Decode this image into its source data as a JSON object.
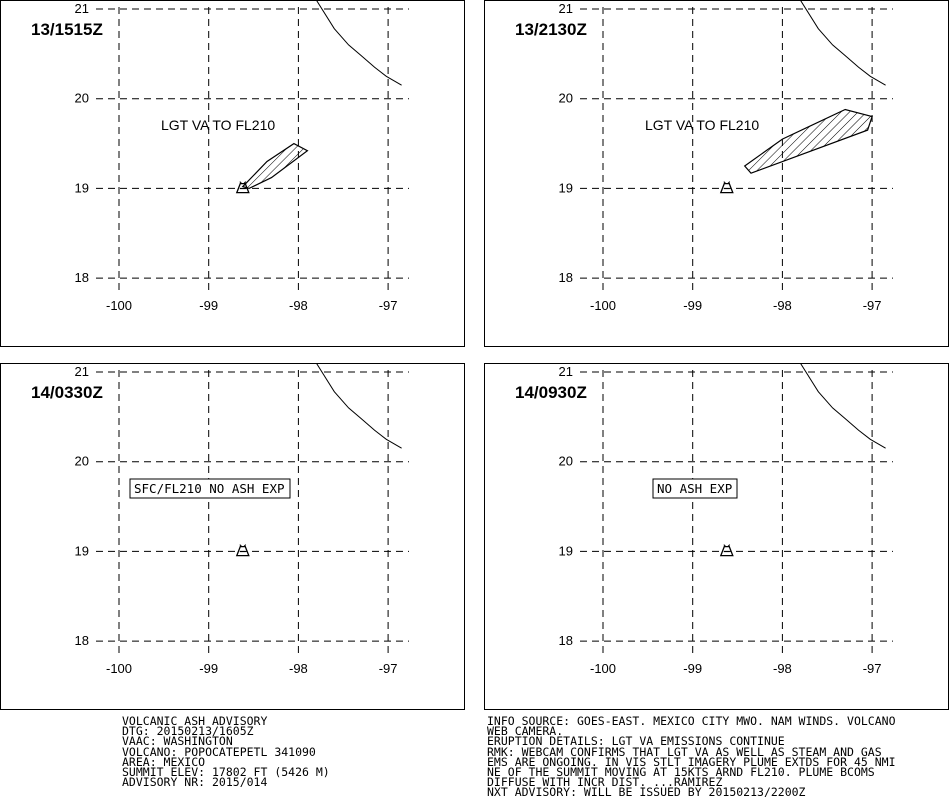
{
  "panels": [
    {
      "time": "13/1515Z",
      "label": "LGT VA TO FL210",
      "label_style": "plain",
      "has_plume": true
    },
    {
      "time": "13/2130Z",
      "label": "LGT VA TO FL210",
      "label_style": "plain",
      "has_plume": true
    },
    {
      "time": "14/0330Z",
      "label": "SFC/FL210 NO ASH EXP",
      "label_style": "boxed",
      "has_plume": false
    },
    {
      "time": "14/0930Z",
      "label": "NO ASH EXP",
      "label_style": "boxed",
      "has_plume": false
    }
  ],
  "axes": {
    "lon_ticks": [
      "-100",
      "-99",
      "-98",
      "-97"
    ],
    "lat_ticks": [
      "21",
      "20",
      "19",
      "18"
    ]
  },
  "volcano": {
    "lon": -98.62,
    "lat": 19.02
  },
  "plumes": [
    [
      [
        -98.62,
        19.02
      ],
      [
        -98.35,
        19.3
      ],
      [
        -98.05,
        19.5
      ],
      [
        -97.9,
        19.42
      ],
      [
        -98.3,
        19.12
      ],
      [
        -98.55,
        19.0
      ]
    ],
    [
      [
        -98.42,
        19.25
      ],
      [
        -98.0,
        19.55
      ],
      [
        -97.3,
        19.88
      ],
      [
        -97.0,
        19.8
      ],
      [
        -97.05,
        19.65
      ],
      [
        -98.35,
        19.17
      ]
    ]
  ],
  "coastline": [
    [
      -97.8,
      21.1
    ],
    [
      -97.6,
      20.78
    ],
    [
      -97.44,
      20.6
    ],
    [
      -97.3,
      20.48
    ],
    [
      -97.15,
      20.35
    ],
    [
      -97.02,
      20.25
    ],
    [
      -96.85,
      20.15
    ]
  ],
  "advisory_left": [
    "VOLCANIC ASH ADVISORY",
    "DTG: 20150213/1605Z",
    "VAAC: WASHINGTON",
    "VOLCANO: POPOCATEPETL 341090",
    "AREA: MEXICO",
    "SUMMIT ELEV: 17802 FT (5426 M)",
    "ADVISORY NR: 2015/014"
  ],
  "advisory_right": [
    "INFO SOURCE: GOES-EAST. MEXICO CITY MWO. NAM WINDS. VOLCANO",
    "WEB CAMERA.",
    "ERUPTION DETAILS: LGT VA EMISSIONS CONTINUE",
    "RMK: WEBCAM CONFIRMS THAT LGT VA AS WELL AS STEAM AND GAS",
    "EMS ARE ONGOING. IN VIS STLT IMAGERY PLUME EXTDS FOR 45 NMI",
    "NE OF THE SUMMIT MOVING AT 15KTS ARND FL210. PLUME BCOMS",
    "DIFFUSE WITH INCR DIST. ...RAMIREZ",
    "NXT ADVISORY: WILL BE ISSUED BY 20150213/2200Z"
  ]
}
